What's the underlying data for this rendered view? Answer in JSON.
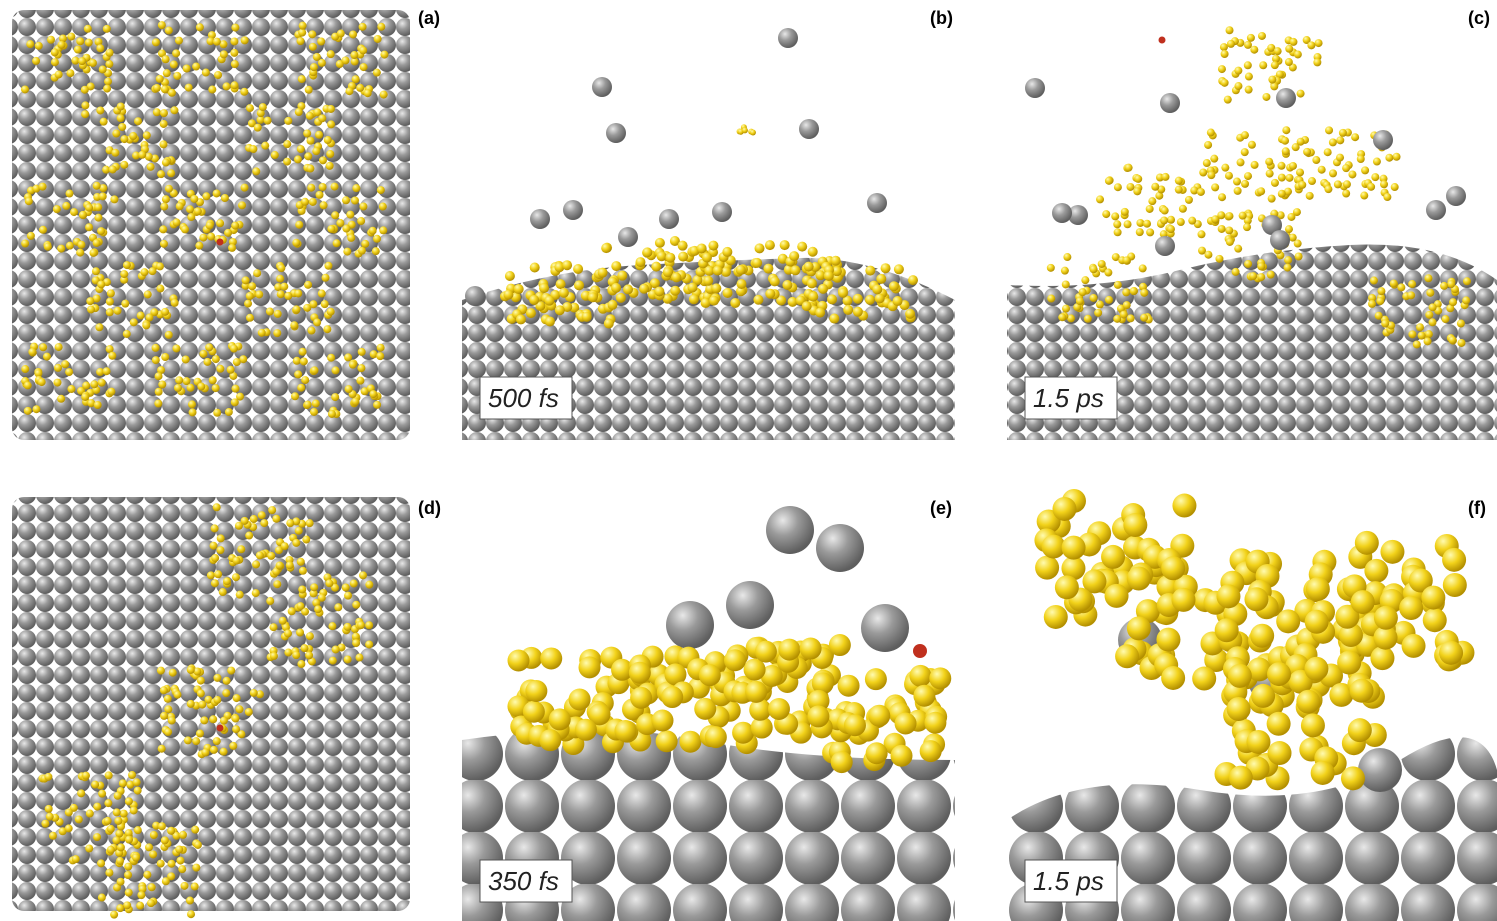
{
  "panels": [
    {
      "label": "(a)"
    },
    {
      "label": "(b)",
      "time_label": "500 fs"
    },
    {
      "label": "(c)",
      "time_label": "1.5 ps"
    },
    {
      "label": "(d)"
    },
    {
      "label": "(e)",
      "time_label": "350 fs"
    },
    {
      "label": "(f)",
      "time_label": "1.5 ps"
    }
  ]
}
